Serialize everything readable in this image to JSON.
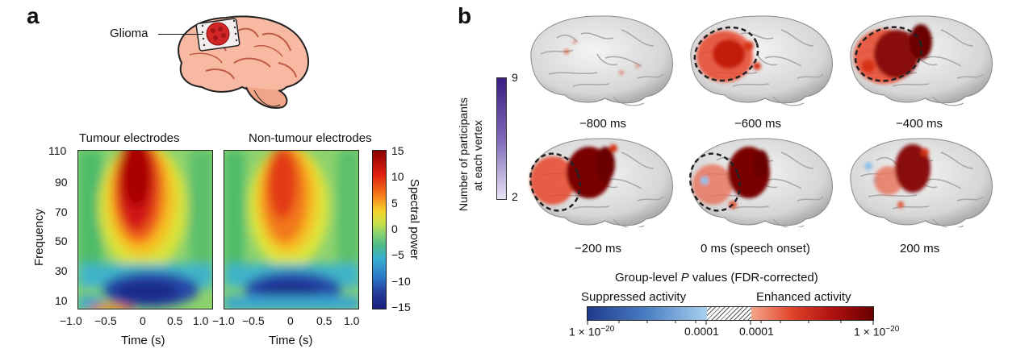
{
  "panel_a": {
    "letter": "a",
    "glioma_label": "Glioma",
    "left_title": "Tumour electrodes",
    "right_title": "Non-tumour electrodes",
    "y_label": "Frequency",
    "y_ticks": [
      "110",
      "90",
      "70",
      "50",
      "30",
      "10"
    ],
    "x_label_left": "Time (s)",
    "x_label_right": "Time (s)",
    "x_ticks_left": [
      "−1.0",
      "−0.5",
      "0",
      "0.5",
      "1.0"
    ],
    "x_ticks_right": [
      "−1.0",
      "−0.5",
      "0",
      "0.5",
      "1.0"
    ],
    "colorbar_label": "Spectral power",
    "colorbar_ticks": [
      "15",
      "10",
      "5",
      "0",
      "−5",
      "−10",
      "−15"
    ]
  },
  "panel_b": {
    "letter": "b",
    "participants_label_line1": "Number of participants",
    "participants_label_line2": "at each vertex",
    "participants_max": "9",
    "participants_min": "2",
    "time_labels": [
      "−800 ms",
      "−600 ms",
      "−400 ms",
      "−200 ms",
      "0 ms (speech onset)",
      "200 ms"
    ],
    "pvalue_title_pre": "Group-level ",
    "pvalue_title_italic": "P",
    "pvalue_title_post": " values (FDR-corrected)",
    "suppressed_label": "Suppressed activity",
    "enhanced_label": "Enhanced activity",
    "scale_left": "1 × 10",
    "scale_left_exp": "−20",
    "scale_mid_left": "0.0001",
    "scale_mid_right": "0.0001",
    "scale_right": "1 × 10",
    "scale_right_exp": "−20"
  },
  "colors": {
    "suppressed_dark": "#1f3a8a",
    "suppressed_light": "#a9d0ee",
    "enhanced_light": "#f4a58a",
    "enhanced_dark": "#6b0000",
    "participants_dark": "#3b1d82",
    "participants_light": "#e7e2f3"
  }
}
